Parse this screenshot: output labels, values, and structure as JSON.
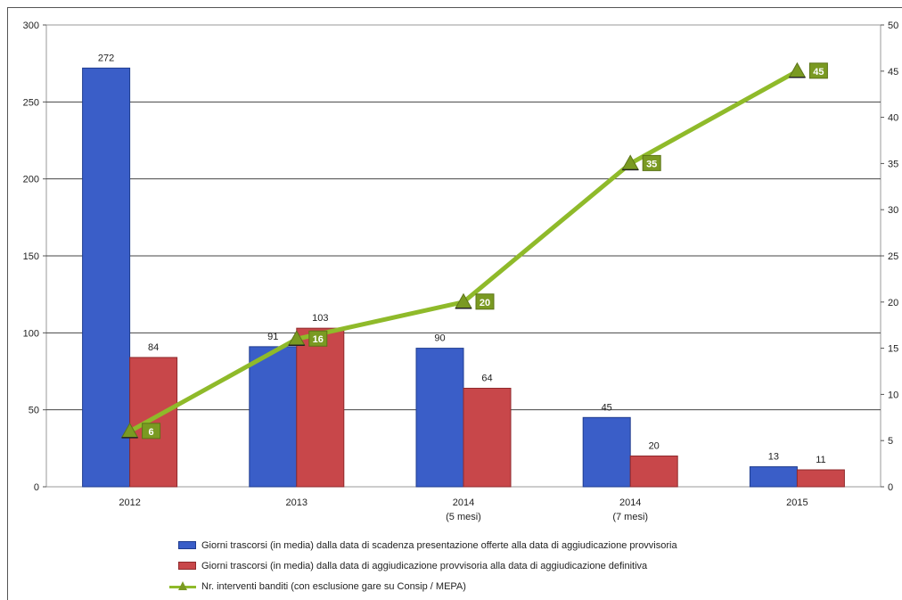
{
  "chart_data": {
    "type": "bar",
    "categories": [
      {
        "line1": "2012",
        "line2": ""
      },
      {
        "line1": "2013",
        "line2": ""
      },
      {
        "line1": "2014",
        "line2": "(5 mesi)"
      },
      {
        "line1": "2014",
        "line2": "(7 mesi)"
      },
      {
        "line1": "2015",
        "line2": ""
      }
    ],
    "series": [
      {
        "name": "Giorni trascorsi (in media) dalla data di scadenza presentazione offerte alla data di aggiudicazione provvisoria",
        "values": [
          272,
          91,
          90,
          45,
          13
        ],
        "color": "#3a5ec8",
        "axis": "left"
      },
      {
        "name": "Giorni trascorsi (in media) dalla data di aggiudicazione provvisoria alla data di aggiudicazione definitiva",
        "values": [
          84,
          103,
          64,
          20,
          11
        ],
        "color": "#c8474a",
        "axis": "left"
      },
      {
        "name": "Nr. interventi banditi (con esclusione gare su Consip / MEPA)",
        "values": [
          6,
          16,
          20,
          35,
          45
        ],
        "color": "#8fba2a",
        "type": "line",
        "axis": "right"
      }
    ],
    "y_left": {
      "min": 0,
      "max": 300,
      "ticks": [
        0,
        50,
        100,
        150,
        200,
        250,
        300
      ]
    },
    "y_right": {
      "min": 0,
      "max": 50,
      "ticks": [
        "0",
        "5",
        "10",
        "15",
        "20",
        "25",
        "30",
        "35",
        "40",
        "45",
        "50"
      ]
    },
    "grid": true,
    "legend": "bottom"
  }
}
